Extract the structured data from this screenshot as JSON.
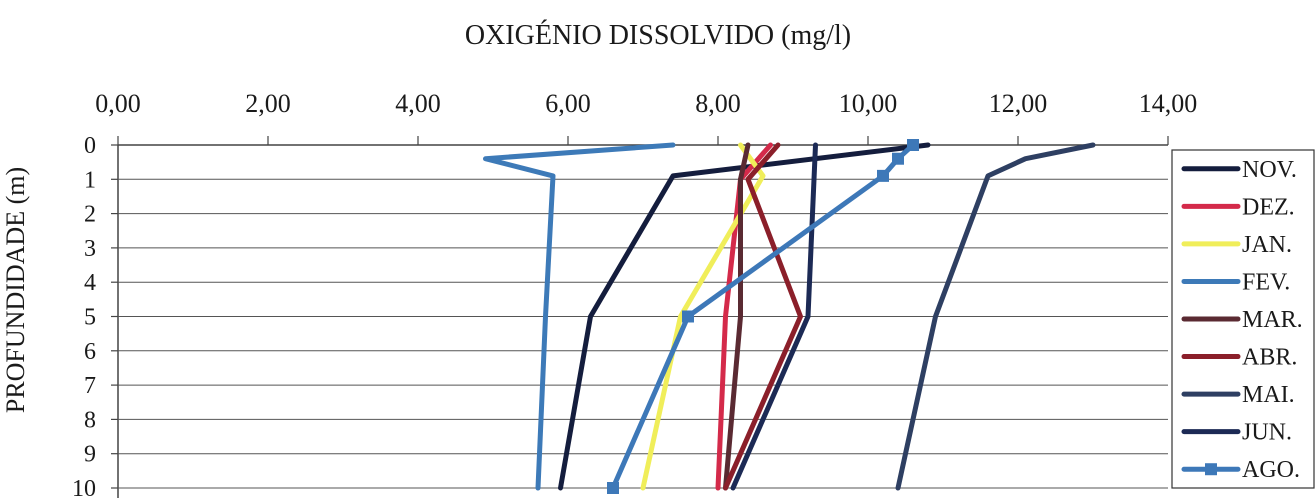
{
  "chart_data": {
    "type": "line",
    "title": "OXIGÉNIO DISSOLVIDO (mg/l)",
    "xlabel": "",
    "ylabel": "PROFUNDIDADE (m)",
    "xlim": [
      0,
      14
    ],
    "ylim": [
      0,
      10
    ],
    "x_axis_position": "top",
    "y_axis_inverted": true,
    "grid": "horizontal",
    "legend_position": "right",
    "x_ticks": [
      "0,00",
      "2,00",
      "4,00",
      "6,00",
      "8,00",
      "10,00",
      "12,00",
      "14,00"
    ],
    "y_ticks": [
      "0",
      "1",
      "2",
      "3",
      "4",
      "5",
      "6",
      "7",
      "8",
      "9",
      "10"
    ],
    "series": [
      {
        "name": "NOV.",
        "color": "#141d3d",
        "marker": "none",
        "points": [
          [
            10.8,
            0
          ],
          [
            7.4,
            0.9
          ],
          [
            6.3,
            5
          ],
          [
            5.9,
            10
          ]
        ]
      },
      {
        "name": "DEZ.",
        "color": "#d42a4a",
        "marker": "none",
        "points": [
          [
            8.7,
            0
          ],
          [
            8.5,
            0.5
          ],
          [
            8.3,
            1
          ],
          [
            8.1,
            5
          ],
          [
            8.0,
            10
          ]
        ]
      },
      {
        "name": "JAN.",
        "color": "#f0ee5a",
        "marker": "none",
        "points": [
          [
            8.3,
            0
          ],
          [
            8.6,
            0.9
          ],
          [
            7.5,
            5
          ],
          [
            7.0,
            10
          ]
        ]
      },
      {
        "name": "FEV.",
        "color": "#3d7ab8",
        "marker": "none",
        "points": [
          [
            7.4,
            0
          ],
          [
            4.9,
            0.4
          ],
          [
            5.8,
            0.9
          ],
          [
            5.7,
            5
          ],
          [
            5.6,
            10
          ]
        ]
      },
      {
        "name": "MAR.",
        "color": "#5a2a32",
        "marker": "none",
        "points": [
          [
            8.4,
            0
          ],
          [
            8.3,
            1
          ],
          [
            8.3,
            5
          ],
          [
            8.1,
            10
          ]
        ]
      },
      {
        "name": "ABR.",
        "color": "#8b1f2a",
        "marker": "none",
        "points": [
          [
            8.8,
            0
          ],
          [
            8.4,
            1
          ],
          [
            9.1,
            5
          ],
          [
            8.1,
            10
          ]
        ]
      },
      {
        "name": "MAI.",
        "color": "#2e3f62",
        "marker": "none",
        "points": [
          [
            13.0,
            0
          ],
          [
            12.1,
            0.4
          ],
          [
            11.6,
            0.9
          ],
          [
            10.9,
            5
          ],
          [
            10.4,
            10
          ]
        ]
      },
      {
        "name": "JUN.",
        "color": "#1c2a55",
        "marker": "none",
        "points": [
          [
            9.3,
            0
          ],
          [
            9.2,
            5
          ],
          [
            8.2,
            10
          ]
        ]
      },
      {
        "name": "AGO.",
        "color": "#3d78b8",
        "marker": "square",
        "points": [
          [
            10.6,
            0
          ],
          [
            10.4,
            0.4
          ],
          [
            10.2,
            0.9
          ],
          [
            7.6,
            5
          ],
          [
            6.6,
            10
          ]
        ]
      }
    ]
  }
}
